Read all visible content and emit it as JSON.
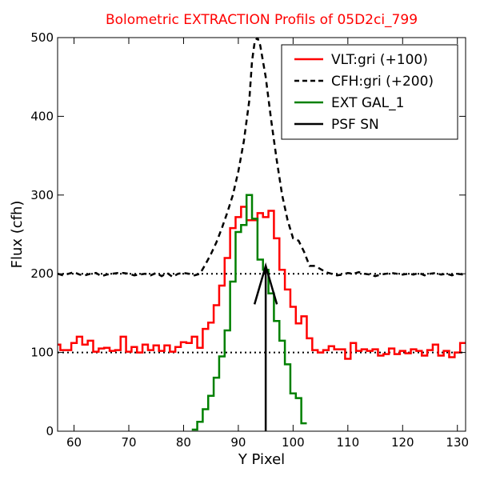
{
  "chart_data": {
    "type": "line",
    "title": "Bolometric EXTRACTION Profils of 05D2ci_799",
    "title_color": "#ff0000",
    "xlabel": "Y Pixel",
    "ylabel": "Flux (cfh)",
    "xlim": [
      57,
      131.5
    ],
    "ylim": [
      0,
      500
    ],
    "xticks": [
      60,
      70,
      80,
      90,
      100,
      110,
      120,
      130
    ],
    "yticks": [
      0,
      100,
      200,
      300,
      400,
      500
    ],
    "grid": false,
    "legend_position": "top-right",
    "series": [
      {
        "name": "VLT:gri (+100)",
        "color": "#ff0000",
        "style": "steps-solid",
        "x": [
          57,
          58,
          59,
          60,
          61,
          62,
          63,
          64,
          65,
          66,
          67,
          68,
          69,
          70,
          71,
          72,
          73,
          74,
          75,
          76,
          77,
          78,
          79,
          80,
          81,
          82,
          83,
          84,
          85,
          86,
          87,
          88,
          89,
          90,
          91,
          92,
          93,
          94,
          95,
          96,
          97,
          98,
          99,
          100,
          101,
          102,
          103,
          104,
          105,
          106,
          107,
          108,
          109,
          110,
          111,
          112,
          113,
          114,
          115,
          116,
          117,
          118,
          119,
          120,
          121,
          122,
          123,
          124,
          125,
          126,
          127,
          128,
          129,
          130,
          131
        ],
        "values": [
          110,
          103,
          103,
          112,
          120,
          110,
          115,
          101,
          105,
          106,
          102,
          103,
          120,
          101,
          107,
          100,
          110,
          103,
          109,
          102,
          109,
          101,
          107,
          113,
          112,
          120,
          106,
          130,
          138,
          160,
          185,
          220,
          258,
          272,
          285,
          268,
          268,
          277,
          272,
          280,
          245,
          205,
          180,
          158,
          137,
          146,
          118,
          103,
          100,
          103,
          108,
          104,
          104,
          92,
          112,
          102,
          104,
          102,
          104,
          96,
          98,
          105,
          98,
          102,
          99,
          104,
          102,
          96,
          103,
          110,
          96,
          102,
          94,
          100,
          112
        ],
        "xlim_note": ""
      },
      {
        "name": "CFH:gri (+200)",
        "color": "#000000",
        "style": "dashed",
        "x": [
          57,
          58,
          59,
          60,
          61,
          62,
          63,
          64,
          65,
          66,
          67,
          68,
          69,
          70,
          71,
          72,
          73,
          74,
          75,
          76,
          77,
          78,
          79,
          80,
          81,
          82,
          83,
          84,
          85,
          86,
          87,
          88,
          89,
          90,
          91,
          92,
          92.5,
          93,
          93.5,
          94,
          95,
          96,
          97,
          98,
          99,
          100,
          101,
          102,
          103,
          104,
          105,
          106,
          107,
          108,
          109,
          110,
          111,
          112,
          113,
          114,
          115,
          116,
          117,
          118,
          119,
          120,
          121,
          122,
          123,
          124,
          125,
          126,
          127,
          128,
          129,
          130,
          131
        ],
        "values": [
          200,
          198,
          200,
          202,
          199,
          198,
          200,
          201,
          197,
          199,
          200,
          201,
          201,
          200,
          198,
          199,
          200,
          198,
          201,
          197,
          201,
          196,
          200,
          201,
          200,
          198,
          200,
          212,
          225,
          240,
          258,
          278,
          300,
          330,
          368,
          420,
          470,
          495,
          500,
          490,
          450,
          395,
          345,
          300,
          268,
          245,
          242,
          228,
          210,
          210,
          206,
          202,
          200,
          198,
          199,
          201,
          200,
          202,
          200,
          199,
          197,
          199,
          200,
          201,
          200,
          199,
          200,
          199,
          201,
          198,
          200,
          201,
          199,
          200,
          198,
          200,
          199
        ]
      },
      {
        "name": "EXT GAL_1",
        "color": "#008000",
        "style": "steps-solid",
        "x": [
          82,
          83,
          84,
          85,
          86,
          87,
          88,
          89,
          90,
          91,
          92,
          93,
          94,
          95,
          96,
          97,
          98,
          99,
          100,
          101,
          102
        ],
        "values": [
          2,
          12,
          28,
          45,
          68,
          95,
          128,
          190,
          253,
          262,
          300,
          270,
          218,
          205,
          175,
          140,
          115,
          85,
          48,
          42,
          10
        ]
      },
      {
        "name": "PSF SN",
        "color": "#000000",
        "style": "arrow",
        "x": [
          95,
          95
        ],
        "values": [
          0,
          210
        ]
      }
    ],
    "reference_lines": [
      {
        "y": 100,
        "style": "dotted",
        "color": "#000000"
      },
      {
        "y": 200,
        "style": "dotted",
        "color": "#000000"
      }
    ]
  }
}
